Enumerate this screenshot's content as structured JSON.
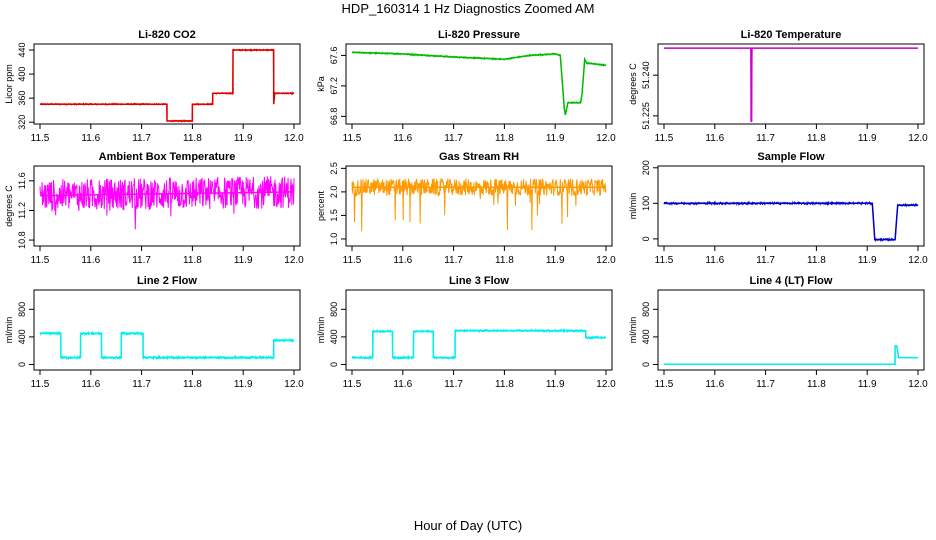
{
  "title": "HDP_160314  1 Hz Diagnostics Zoomed AM",
  "xlabel": "Hour of Day (UTC)",
  "chart_data": [
    {
      "type": "line",
      "title": "Li-820 CO2",
      "ylabel": "Licor ppm",
      "color": "#e00000",
      "xlim": [
        11.5,
        12.0
      ],
      "ylim": [
        317,
        450
      ],
      "xticks": [
        "11.5",
        "11.6",
        "11.7",
        "11.8",
        "11.9",
        "12.0"
      ],
      "yticks": [
        "320",
        "360",
        "400",
        "440"
      ],
      "series": [
        {
          "x": [
            11.5,
            11.75,
            11.75,
            11.8,
            11.8,
            11.84,
            11.84,
            11.88,
            11.88,
            11.96,
            11.96,
            11.962,
            11.964,
            12.0
          ],
          "y": [
            350,
            350,
            322,
            322,
            350,
            350,
            368,
            368,
            440,
            440,
            350,
            368,
            368,
            368
          ],
          "noise": 1.2
        }
      ]
    },
    {
      "type": "line",
      "title": "Li-820 Pressure",
      "ylabel": "kPa",
      "color": "#00bb00",
      "xlim": [
        11.5,
        12.0
      ],
      "ylim": [
        66.7,
        67.75
      ],
      "xticks": [
        "11.5",
        "11.6",
        "11.7",
        "11.8",
        "11.9",
        "12.0"
      ],
      "yticks": [
        "66.8",
        "67.2",
        "67.6"
      ],
      "series": [
        {
          "x": [
            11.5,
            11.6,
            11.7,
            11.8,
            11.85,
            11.9,
            11.91,
            11.918,
            11.92,
            11.925,
            11.95,
            11.953,
            11.958,
            11.962,
            11.99,
            12.0
          ],
          "y": [
            67.64,
            67.62,
            67.58,
            67.55,
            67.6,
            67.62,
            67.6,
            66.9,
            66.82,
            66.98,
            66.98,
            67.1,
            67.55,
            67.5,
            67.48,
            67.47
          ],
          "noise": 0.01
        }
      ]
    },
    {
      "type": "line",
      "title": "Li-820 Temperature",
      "ylabel": "degrees C",
      "color": "#cc00cc",
      "xlim": [
        11.5,
        12.0
      ],
      "ylim": [
        51.222,
        51.2515
      ],
      "xticks": [
        "11.5",
        "11.6",
        "11.7",
        "11.8",
        "11.9",
        "12.0"
      ],
      "yticks": [
        "51.225",
        "51.240"
      ],
      "series": [
        {
          "x": [
            11.5,
            11.671,
            11.6715,
            11.6725,
            11.673,
            12.0
          ],
          "y": [
            51.25,
            51.25,
            51.223,
            51.223,
            51.25,
            51.25
          ],
          "noise": 0
        }
      ]
    },
    {
      "type": "line",
      "title": "Ambient Box Temperature",
      "ylabel": "degrees C",
      "color": "#ff00ff",
      "xlim": [
        11.5,
        12.0
      ],
      "ylim": [
        10.72,
        11.8
      ],
      "xticks": [
        "11.5",
        "11.6",
        "11.7",
        "11.8",
        "11.9",
        "12.0"
      ],
      "yticks": [
        "10.8",
        "11.2",
        "11.6"
      ],
      "series": [
        {
          "x": [
            11.5,
            12.0
          ],
          "y": [
            11.4,
            11.45
          ],
          "noise": 0.22
        }
      ]
    },
    {
      "type": "line",
      "title": "Gas Stream RH",
      "ylabel": "percent",
      "color": "#ff9900",
      "xlim": [
        11.5,
        12.0
      ],
      "ylim": [
        0.85,
        2.55
      ],
      "xticks": [
        "11.5",
        "11.6",
        "11.7",
        "11.8",
        "11.9",
        "12.0"
      ],
      "yticks": [
        "1.0",
        "1.5",
        "2.0",
        "2.5"
      ],
      "series": [
        {
          "x": [
            11.5,
            12.0
          ],
          "y": [
            2.1,
            2.1
          ],
          "noise": 0.18
        }
      ]
    },
    {
      "type": "line",
      "title": "Sample Flow",
      "ylabel": "ml/min",
      "color": "#0000cc",
      "xlim": [
        11.5,
        12.0
      ],
      "ylim": [
        -20,
        205
      ],
      "xticks": [
        "11.5",
        "11.6",
        "11.7",
        "11.8",
        "11.9",
        "12.0"
      ],
      "yticks": [
        "0",
        "100",
        "200"
      ],
      "series": [
        {
          "x": [
            11.5,
            11.7,
            11.8,
            11.91,
            11.915,
            11.955,
            11.96,
            12.0
          ],
          "y": [
            100,
            100,
            100,
            100,
            -2,
            -2,
            95,
            95
          ],
          "noise": 3
        }
      ]
    },
    {
      "type": "line",
      "title": "Line 2 Flow",
      "ylabel": "ml/min",
      "color": "#00eeee",
      "xlim": [
        11.5,
        12.0
      ],
      "ylim": [
        -80,
        1080
      ],
      "xticks": [
        "11.5",
        "11.6",
        "11.7",
        "11.8",
        "11.9",
        "12.0"
      ],
      "yticks": [
        "0",
        "400",
        "800"
      ],
      "series": [
        {
          "x": [
            11.5,
            11.541,
            11.541,
            11.58,
            11.58,
            11.621,
            11.621,
            11.66,
            11.66,
            11.703,
            11.703,
            11.96,
            11.96,
            12.0
          ],
          "y": [
            450,
            450,
            100,
            100,
            450,
            450,
            100,
            100,
            450,
            450,
            100,
            100,
            350,
            350
          ],
          "noise": 18
        }
      ]
    },
    {
      "type": "line",
      "title": "Line 3 Flow",
      "ylabel": "ml/min",
      "color": "#00eeee",
      "xlim": [
        11.5,
        12.0
      ],
      "ylim": [
        -80,
        1080
      ],
      "xticks": [
        "11.5",
        "11.6",
        "11.7",
        "11.8",
        "11.9",
        "12.0"
      ],
      "yticks": [
        "0",
        "400",
        "800"
      ],
      "series": [
        {
          "x": [
            11.5,
            11.541,
            11.541,
            11.58,
            11.58,
            11.621,
            11.621,
            11.66,
            11.66,
            11.703,
            11.703,
            11.96,
            11.96,
            12.0
          ],
          "y": [
            100,
            100,
            480,
            480,
            100,
            100,
            480,
            480,
            100,
            100,
            490,
            490,
            390,
            390
          ],
          "noise": 15
        }
      ]
    },
    {
      "type": "line",
      "title": "Line 4 (LT) Flow",
      "ylabel": "ml/min",
      "color": "#00eeee",
      "xlim": [
        11.5,
        12.0
      ],
      "ylim": [
        -80,
        1080
      ],
      "xticks": [
        "11.5",
        "11.6",
        "11.7",
        "11.8",
        "11.9",
        "12.0"
      ],
      "yticks": [
        "0",
        "400",
        "800"
      ],
      "series": [
        {
          "x": [
            11.5,
            11.955,
            11.955,
            11.958,
            11.962,
            12.0
          ],
          "y": [
            2,
            2,
            270,
            270,
            100,
            100
          ],
          "noise": 1
        }
      ]
    }
  ]
}
